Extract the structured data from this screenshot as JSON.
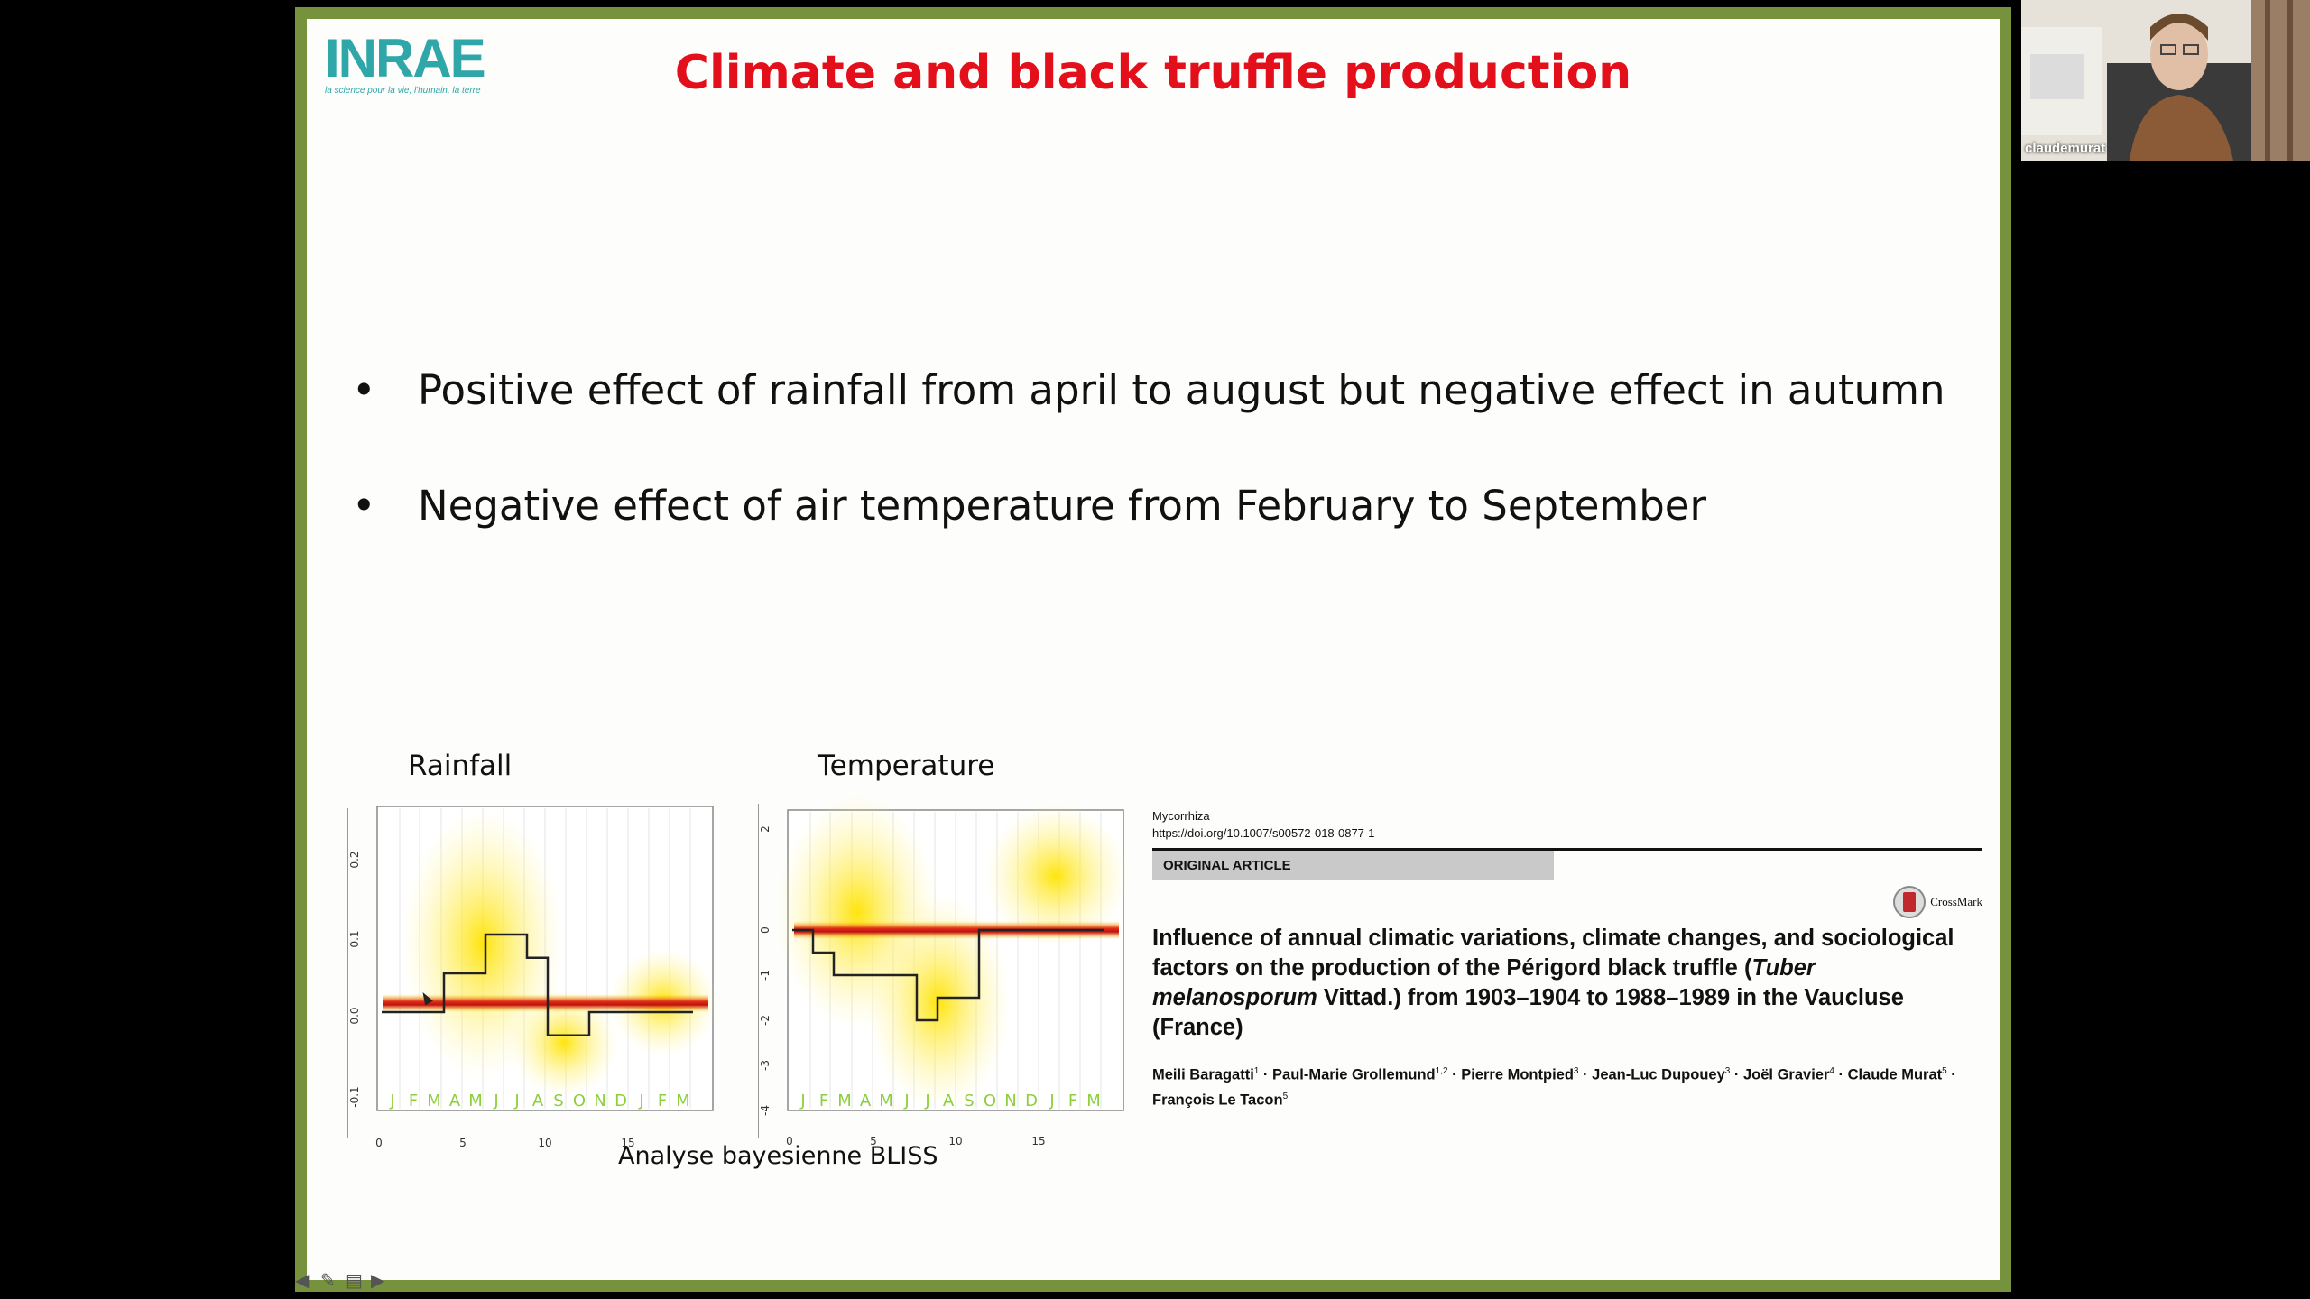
{
  "slide": {
    "title": "Climate and black truffle production",
    "logo_text": "INRAE",
    "logo_tagline": "la science pour la vie, l'humain, la terre",
    "bullets": [
      "Positive effect of rainfall from april to august but negative effect in autumn",
      "Negative effect of air temperature from February to September"
    ],
    "bullet_symbol": "•",
    "caption": "Analyse bayesienne BLISS",
    "accent_color": "#e3101b",
    "frame_color": "#76923c"
  },
  "plots": {
    "rainfall": {
      "label": "Rainfall",
      "y_ticks": [
        "0.2",
        "0.1",
        "0.0",
        "-0.1"
      ],
      "x_ticks": [
        "0",
        "5",
        "10",
        "15"
      ],
      "months": [
        "J",
        "F",
        "M",
        "A",
        "M",
        "J",
        "J",
        "A",
        "S",
        "O",
        "N",
        "D",
        "J",
        "F",
        "M"
      ],
      "step_values": [
        0,
        0,
        0,
        0.05,
        0.05,
        0.1,
        0.1,
        0.07,
        -0.03,
        -0.03,
        0,
        0,
        0,
        0,
        0
      ]
    },
    "temperature": {
      "label": "Temperature",
      "y_ticks": [
        "2",
        "0",
        "-1",
        "-2",
        "-3",
        "-4"
      ],
      "x_ticks": [
        "0",
        "5",
        "10",
        "15"
      ],
      "months": [
        "J",
        "F",
        "M",
        "A",
        "M",
        "J",
        "J",
        "A",
        "S",
        "O",
        "N",
        "D",
        "J",
        "F",
        "M"
      ],
      "step_values": [
        0,
        -0.5,
        -1,
        -1,
        -1,
        -1,
        -2,
        -1.5,
        -1.5,
        0,
        0,
        0,
        0,
        0,
        0
      ]
    }
  },
  "paper": {
    "journal": "Mycorrhiza",
    "doi": "https://doi.org/10.1007/s00572-018-0877-1",
    "article_type": "ORIGINAL ARTICLE",
    "crossmark": "CrossMark",
    "title_part1": "Influence of annual climatic variations, climate changes, and sociological factors on the production of the Périgord black truffle (",
    "title_italic": "Tuber melanosporum",
    "title_part2": " Vittad.) from 1903–1904 to 1988–1989 in the Vaucluse (France)",
    "authors": [
      {
        "name": "Meili Baragatti",
        "sup": "1"
      },
      {
        "name": "Paul-Marie Grollemund",
        "sup": "1,2"
      },
      {
        "name": "Pierre Montpied",
        "sup": "3"
      },
      {
        "name": "Jean-Luc Dupouey",
        "sup": "3"
      },
      {
        "name": "Joël Gravier",
        "sup": "4"
      },
      {
        "name": "Claude Murat",
        "sup": "5"
      },
      {
        "name": "François Le Tacon",
        "sup": "5"
      }
    ]
  },
  "webcam": {
    "participant_name": "claudemurat"
  }
}
